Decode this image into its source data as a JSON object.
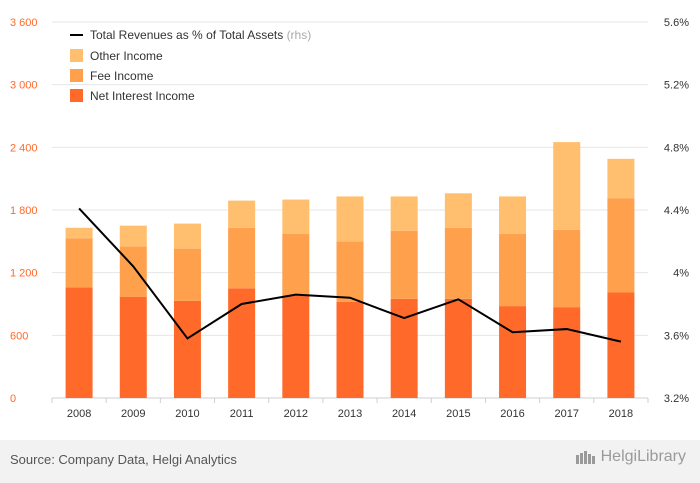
{
  "chart_data": {
    "type": "bar",
    "stacked": true,
    "categories": [
      "2008",
      "2009",
      "2010",
      "2011",
      "2012",
      "2013",
      "2014",
      "2015",
      "2016",
      "2017",
      "2018"
    ],
    "series": [
      {
        "name": "Net Interest Income",
        "color": "#ff6a2b",
        "values": [
          1060,
          970,
          930,
          1050,
          980,
          920,
          950,
          950,
          880,
          870,
          1010
        ]
      },
      {
        "name": "Fee Income",
        "color": "#ffa04d",
        "values": [
          470,
          480,
          500,
          580,
          590,
          580,
          650,
          680,
          690,
          740,
          900
        ]
      },
      {
        "name": "Other Income",
        "color": "#ffbf6e",
        "values": [
          100,
          200,
          240,
          260,
          330,
          430,
          330,
          330,
          360,
          840,
          380
        ]
      }
    ],
    "line": {
      "name": "Total Revenues as % of Total Assets",
      "axis_note": "(rhs)",
      "color": "#000000",
      "values": [
        4.41,
        4.04,
        3.58,
        3.8,
        3.86,
        3.84,
        3.71,
        3.83,
        3.62,
        3.64,
        3.56
      ]
    },
    "y_left": {
      "min": 0,
      "max": 3600,
      "ticks": [
        "0",
        "600",
        "1 200",
        "1 800",
        "2 400",
        "3 000",
        "3 600"
      ]
    },
    "y_right": {
      "min": 3.2,
      "max": 5.6,
      "ticks": [
        "3.2%",
        "3.6%",
        "4%",
        "4.4%",
        "4.8%",
        "5.2%",
        "5.6%"
      ]
    },
    "legend_position": "top-left",
    "grid": true,
    "left_tick_color": "#ff6a2b"
  },
  "footer": {
    "source": "Source: Company Data, Helgi Analytics",
    "logo": "HelgiLibrary"
  }
}
